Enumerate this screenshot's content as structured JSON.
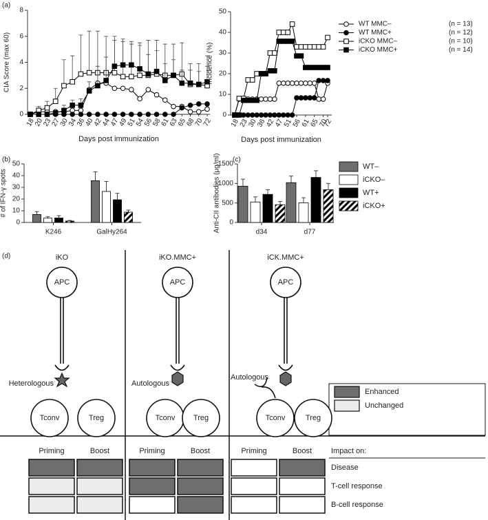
{
  "chart_data": [
    {
      "type": "line",
      "panel": "(a)",
      "xlabel": "Days post immunization",
      "ylabel": "CIA Score (max 60)",
      "categories": [
        "18",
        "20",
        "23",
        "27",
        "30",
        "34",
        "36",
        "40",
        "42",
        "44",
        "47",
        "49",
        "51",
        "54",
        "56",
        "58",
        "61",
        "63",
        "65",
        "68",
        "70",
        "72"
      ],
      "ylim": [
        0,
        8
      ],
      "yticks": [
        0,
        2,
        4,
        6,
        8
      ],
      "series": [
        {
          "marker": "circle",
          "filled": false,
          "color": "#000000",
          "values": [
            0,
            0.2,
            0.2,
            0.2,
            0.2,
            0.3,
            0.3,
            1.9,
            2.4,
            2.4,
            2.0,
            2.0,
            1.9,
            1.2,
            1.9,
            1.5,
            1.1,
            0.6,
            0.6,
            0.2,
            0.2,
            0.4
          ]
        },
        {
          "marker": "circle",
          "filled": true,
          "color": "#000000",
          "values": [
            0,
            0,
            0,
            0,
            0,
            0,
            0,
            0,
            0,
            0,
            0,
            0,
            0,
            0,
            0,
            0,
            0,
            0,
            0.5,
            0.7,
            0.8,
            0.8
          ]
        },
        {
          "marker": "square",
          "filled": false,
          "color": "#000000",
          "values": [
            0,
            0.3,
            0.5,
            1.0,
            2.2,
            2.5,
            3.1,
            3.2,
            3.2,
            3.2,
            3.2,
            2.9,
            2.9,
            3.0,
            3.0,
            3.1,
            3.0,
            3.0,
            3.1,
            2.3,
            2.3,
            2.2
          ],
          "errors": [
            0,
            0.3,
            0.5,
            1.0,
            2.0,
            2.0,
            3.0,
            3.2,
            3.2,
            2.8,
            2.8,
            2.7,
            2.5,
            2.5,
            2.7,
            2.6,
            2.4,
            2.4,
            2.4,
            1.6,
            1.6,
            1.5
          ]
        },
        {
          "marker": "square",
          "filled": true,
          "color": "#000000",
          "values": [
            0,
            0,
            0,
            0.1,
            0.3,
            0.7,
            0.7,
            1.8,
            2.2,
            2.6,
            3.7,
            3.8,
            3.8,
            3.5,
            3.1,
            3.3,
            2.6,
            3.0,
            2.4,
            2.4,
            2.3,
            2.5
          ],
          "errors": [
            0,
            0,
            0,
            0.2,
            0.4,
            0.4,
            0.5,
            0.7,
            1.5,
            1.8,
            2.0,
            2.0,
            1.8,
            1.8,
            1.5,
            1.6,
            1.3,
            1.2,
            1.0,
            1.0,
            1.0,
            2.0
          ]
        }
      ]
    },
    {
      "type": "line",
      "xlabel": "Days post immunization",
      "ylabel": "Incidence (%)",
      "categories": [
        "18",
        null,
        "23",
        null,
        "30",
        null,
        "36",
        null,
        "42",
        null,
        "47",
        null,
        "51",
        null,
        "56",
        null,
        "61",
        null,
        "65",
        null,
        "70",
        "72"
      ],
      "ylim": [
        0,
        50
      ],
      "yticks": [
        0,
        10,
        20,
        30,
        40,
        50
      ],
      "series": [
        {
          "name": "WT MMC–",
          "legend_note": "(n = 13)",
          "marker": "circle",
          "filled": false,
          "color": "#000000",
          "values": [
            0,
            7.7,
            7.7,
            7.7,
            7.7,
            7.7,
            7.7,
            7.7,
            7.7,
            7.7,
            15.4,
            15.4,
            15.4,
            15.4,
            15.4,
            15.4,
            15.4,
            15.4,
            15.4,
            7.7,
            7.7,
            15.4
          ]
        },
        {
          "name": "WT MMC+",
          "legend_note": "(n = 12)",
          "marker": "circle",
          "filled": true,
          "color": "#000000",
          "values": [
            0,
            0,
            0,
            0,
            0,
            0,
            0,
            0,
            0,
            0,
            0,
            0,
            0,
            0,
            8.3,
            8.3,
            8.3,
            8.3,
            8.3,
            16.7,
            16.7,
            16.7
          ]
        },
        {
          "name": "iCKO MMC–",
          "legend_note": "(n = 10)",
          "marker": "square",
          "filled": false,
          "color": "#000000",
          "values": [
            0,
            8,
            8,
            17,
            17,
            20,
            20,
            20,
            30,
            30,
            40,
            40,
            40,
            44,
            33,
            33,
            33,
            33,
            33,
            33,
            33,
            37.5
          ]
        },
        {
          "name": "iCKO MMC+",
          "legend_note": "(n = 14)",
          "marker": "square",
          "filled": true,
          "color": "#000000",
          "values": [
            0,
            0,
            7.1,
            7.1,
            7.1,
            7.1,
            20,
            20,
            21.4,
            21.4,
            35.7,
            35.7,
            35.7,
            35.7,
            28.6,
            28.6,
            23,
            23,
            23,
            23,
            23,
            23
          ]
        }
      ]
    },
    {
      "type": "bar",
      "panel": "(b)",
      "ylabel": "# of IFN-γ spots",
      "categories": [
        "K246",
        "GalHy264"
      ],
      "ylim": [
        0,
        50
      ],
      "yticks": [
        0,
        10,
        20,
        30,
        40,
        50
      ],
      "series": [
        {
          "color": "#6e6e6e",
          "values": [
            6.8,
            35.7
          ],
          "errors": [
            2.5,
            7.5
          ]
        },
        {
          "color": "#ffffff",
          "values": [
            3.7,
            26.5
          ],
          "errors": [
            1.2,
            8.5
          ]
        },
        {
          "color": "#000000",
          "values": [
            3.8,
            19.4
          ],
          "errors": [
            2.0,
            5.5
          ]
        },
        {
          "color": "#000000",
          "hatch": true,
          "values": [
            1.2,
            8.8
          ],
          "errors": [
            0.5,
            1.8
          ]
        }
      ]
    },
    {
      "type": "bar",
      "panel": "(c)",
      "ylabel": "Anti-CII antibodies (μg/ml)",
      "categories": [
        "d34",
        "d77"
      ],
      "ylim": [
        0,
        1500
      ],
      "yticks": [
        0,
        500,
        1000,
        1500
      ],
      "series": [
        {
          "name": "WT–",
          "color": "#6e6e6e",
          "values": [
            930,
            1020
          ],
          "errors": [
            180,
            170
          ]
        },
        {
          "name": "iCKO–",
          "color": "#ffffff",
          "values": [
            525,
            505
          ],
          "errors": [
            130,
            130
          ]
        },
        {
          "name": "WT+",
          "color": "#000000",
          "values": [
            720,
            1155
          ],
          "errors": [
            120,
            170
          ]
        },
        {
          "name": "iCKO+",
          "color": "#000000",
          "hatch": true,
          "values": [
            455,
            840
          ],
          "errors": [
            80,
            160
          ]
        }
      ]
    }
  ],
  "diagram": {
    "panel": "(d)",
    "columns": [
      {
        "title": "iKO",
        "apc": "APC",
        "antigen": "Heterologous",
        "tconv": "Tconv",
        "treg": "Treg",
        "priming": "Priming",
        "boost": "Boost"
      },
      {
        "title": "iKO.MMC+",
        "apc": "APC",
        "antigen": "Autologous",
        "tconv": "Tconv",
        "treg": "Treg",
        "priming": "Priming",
        "boost": "Boost"
      },
      {
        "title": "iCK.MMC+",
        "apc": "APC",
        "antigen": "Autologous",
        "tconv": "Tconv",
        "treg": "Treg",
        "priming": "Priming",
        "boost": "Boost"
      }
    ],
    "legend": [
      {
        "label": "Enhanced",
        "color": "#6e6e6e"
      },
      {
        "label": "Unchanged",
        "color": "#ececec"
      }
    ],
    "impact_header": "Impact on:",
    "rows": [
      "Disease",
      "T-cell response",
      "B-cell response"
    ],
    "fills": [
      [
        [
          "#6e6e6e",
          "#6e6e6e"
        ],
        [
          "#ececec",
          "#ececec"
        ],
        [
          "#ececec",
          "#ececec"
        ]
      ],
      [
        [
          "#6e6e6e",
          "#6e6e6e"
        ],
        [
          "#6e6e6e",
          "#6e6e6e"
        ],
        [
          "#ffffff",
          "#6e6e6e"
        ]
      ],
      [
        [
          "#ffffff",
          "#6e6e6e"
        ],
        [
          "#ffffff",
          "#ffffff"
        ],
        [
          "#ffffff",
          "#ffffff"
        ]
      ]
    ]
  }
}
